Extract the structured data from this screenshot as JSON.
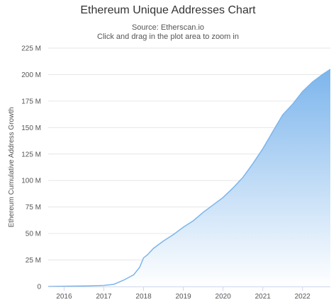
{
  "chart_data": {
    "type": "area",
    "title": "Ethereum Unique Addresses Chart",
    "subtitle_lines": [
      "Source: Etherscan.io",
      "Click and drag in the plot area to zoom in"
    ],
    "ylabel": "Ethereum Cumulative Address Growth",
    "xlabel": "",
    "ylim": [
      0,
      225
    ],
    "y_unit": "M",
    "y_ticks": [
      "0",
      "25 M",
      "50 M",
      "75 M",
      "100 M",
      "125 M",
      "150 M",
      "175 M",
      "200 M",
      "225 M"
    ],
    "x_ticks": [
      "2016",
      "2017",
      "2018",
      "2019",
      "2020",
      "2021",
      "2022"
    ],
    "xlim": [
      2015.6,
      2022.7
    ],
    "grid": true,
    "legend": "none",
    "colors": {
      "line": "#7cb5ec",
      "fill_top": "#7cb5ec",
      "fill_bottom": "#ffffff",
      "grid": "#e6e6e6"
    },
    "series": [
      {
        "x": [
          2015.6,
          2016.0,
          2016.5,
          2017.0,
          2017.25,
          2017.5,
          2017.75,
          2017.9,
          2018.0,
          2018.1,
          2018.25,
          2018.5,
          2018.75,
          2019.0,
          2019.25,
          2019.5,
          2019.75,
          2020.0,
          2020.25,
          2020.5,
          2020.75,
          2021.0,
          2021.25,
          2021.5,
          2021.75,
          2022.0,
          2022.25,
          2022.5,
          2022.7
        ],
        "values": [
          0,
          0.3,
          0.5,
          1,
          2,
          6,
          11,
          18,
          27,
          30,
          36,
          43,
          49,
          56,
          62,
          70,
          77,
          84,
          93,
          103,
          116,
          130,
          146,
          162,
          172,
          184,
          193,
          200,
          205
        ]
      }
    ]
  }
}
